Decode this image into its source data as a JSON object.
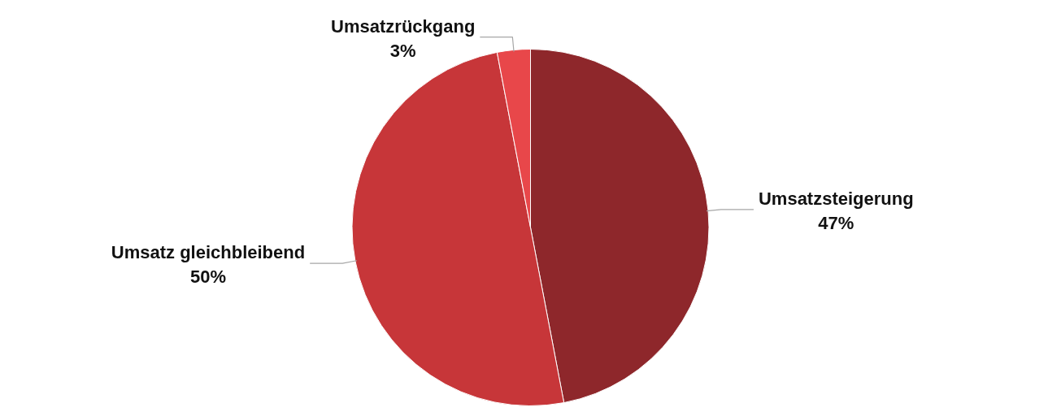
{
  "chart_data": {
    "type": "pie",
    "categories": [
      "Umsatzsteigerung",
      "Umsatz gleichbleibend",
      "Umsatzrückgang"
    ],
    "values": [
      47,
      50,
      3
    ],
    "value_labels": [
      "47%",
      "50%",
      "3%"
    ],
    "colors": [
      "#8e272b",
      "#c73639",
      "#e8474a"
    ],
    "legend": false
  }
}
